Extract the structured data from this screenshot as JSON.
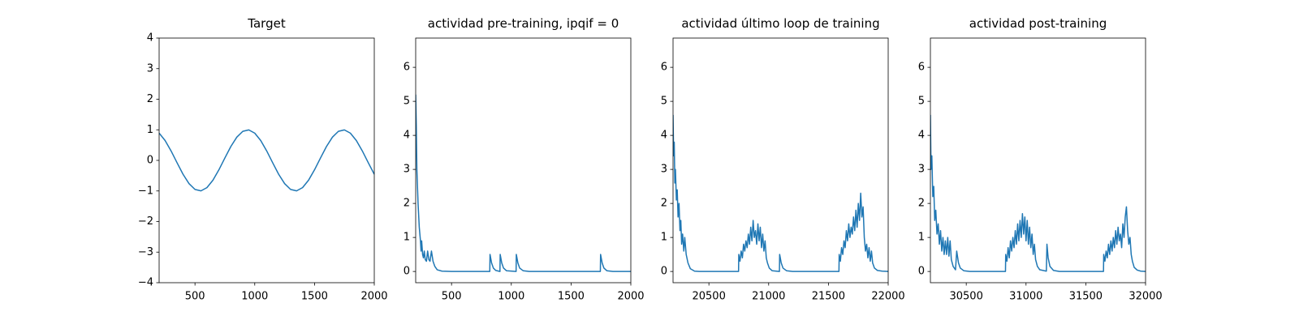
{
  "chart_data": [
    {
      "type": "line",
      "title": "Target",
      "x": [
        200,
        250,
        300,
        350,
        400,
        450,
        500,
        550,
        600,
        650,
        700,
        750,
        800,
        850,
        900,
        950,
        1000,
        1050,
        1100,
        1150,
        1200,
        1250,
        1300,
        1350,
        1400,
        1450,
        1500,
        1550,
        1600,
        1650,
        1700,
        1750,
        1800,
        1850,
        1900,
        1950,
        2000
      ],
      "series": [
        {
          "color": "#1f77b4",
          "values": [
            0.891,
            0.649,
            0.309,
            -0.078,
            -0.454,
            -0.76,
            -0.951,
            -0.997,
            -0.891,
            -0.649,
            -0.309,
            0.078,
            0.454,
            0.76,
            0.951,
            0.997,
            0.891,
            0.649,
            0.309,
            -0.078,
            -0.454,
            -0.76,
            -0.951,
            -0.997,
            -0.891,
            -0.649,
            -0.309,
            0.078,
            0.454,
            0.76,
            0.951,
            0.997,
            0.891,
            0.649,
            0.309,
            -0.078,
            -0.454
          ]
        }
      ],
      "xlim": [
        200,
        2000
      ],
      "xticks": [
        500,
        1000,
        1500,
        2000
      ],
      "ylim": [
        -4,
        4
      ],
      "yticks": [
        {
          "value": -4,
          "label": "−4"
        },
        {
          "value": -3,
          "label": "−3"
        },
        {
          "value": -2,
          "label": "−2"
        },
        {
          "value": -1,
          "label": "−1"
        },
        0,
        1,
        2,
        3,
        4
      ]
    },
    {
      "type": "line",
      "title": "actividad pre-training, ipqif = 0",
      "x": [
        200,
        205,
        210,
        220,
        230,
        240,
        245,
        250,
        258,
        265,
        272,
        280,
        290,
        300,
        310,
        320,
        332,
        345,
        360,
        380,
        420,
        500,
        820,
        822,
        835,
        850,
        870,
        905,
        907,
        920,
        935,
        960,
        1040,
        1042,
        1055,
        1070,
        1100,
        1150,
        1745,
        1747,
        1760,
        1775,
        1800,
        1850,
        2000
      ],
      "series": [
        {
          "color": "#1f77b4",
          "values": [
            5.2,
            4.3,
            3.0,
            2.0,
            1.3,
            0.9,
            0.6,
            0.9,
            0.5,
            0.4,
            0.6,
            0.35,
            0.3,
            0.6,
            0.35,
            0.3,
            0.6,
            0.3,
            0.15,
            0.05,
            0.01,
            0,
            0,
            0.5,
            0.25,
            0.1,
            0.03,
            0,
            0.5,
            0.25,
            0.1,
            0.02,
            0,
            0.5,
            0.25,
            0.1,
            0.02,
            0,
            0,
            0.5,
            0.25,
            0.1,
            0.02,
            0,
            0
          ]
        }
      ],
      "xlim": [
        200,
        2000
      ],
      "xticks": [
        500,
        1000,
        1500,
        2000
      ],
      "ylim": [
        -0.33,
        6.86
      ],
      "yticks": [
        0,
        1,
        2,
        3,
        4,
        5,
        6
      ]
    },
    {
      "type": "line",
      "title": "actividad último loop de training",
      "x": [
        20200,
        20205,
        20210,
        20215,
        20220,
        20228,
        20235,
        20242,
        20250,
        20258,
        20265,
        20272,
        20280,
        20290,
        20298,
        20310,
        20325,
        20345,
        20380,
        20420,
        20748,
        20750,
        20760,
        20770,
        20780,
        20790,
        20800,
        20810,
        20820,
        20830,
        20840,
        20850,
        20860,
        20870,
        20880,
        20890,
        20900,
        20910,
        20920,
        20930,
        20940,
        20950,
        20960,
        20970,
        20980,
        20990,
        21005,
        21030,
        21090,
        21092,
        21105,
        21120,
        21150,
        21200,
        21588,
        21590,
        21600,
        21610,
        21620,
        21630,
        21640,
        21650,
        21660,
        21670,
        21680,
        21690,
        21700,
        21710,
        21720,
        21730,
        21740,
        21750,
        21760,
        21770,
        21780,
        21790,
        21800,
        21810,
        21820,
        21830,
        21840,
        21850,
        21860,
        21870,
        21885,
        21910,
        21950,
        22000
      ],
      "series": [
        {
          "color": "#1f77b4",
          "values": [
            4.6,
            3.4,
            3.8,
            2.6,
            3.0,
            2.1,
            2.4,
            1.6,
            2.0,
            1.2,
            1.5,
            0.8,
            1.1,
            0.6,
            1.0,
            0.5,
            0.25,
            0.08,
            0.01,
            0,
            0,
            0.5,
            0.3,
            0.6,
            0.4,
            0.8,
            0.6,
            0.9,
            0.7,
            1.1,
            0.8,
            1.3,
            0.9,
            1.5,
            1.0,
            1.2,
            0.8,
            1.4,
            0.9,
            1.3,
            0.7,
            1.1,
            0.6,
            0.9,
            0.4,
            0.25,
            0.1,
            0.02,
            0,
            0.5,
            0.25,
            0.1,
            0.02,
            0,
            0,
            0.5,
            0.3,
            0.7,
            0.5,
            0.9,
            0.7,
            1.2,
            0.9,
            1.4,
            1.0,
            1.3,
            1.1,
            1.6,
            1.2,
            1.8,
            1.3,
            2.0,
            1.5,
            2.3,
            1.6,
            1.9,
            1.0,
            0.6,
            0.8,
            0.4,
            0.7,
            0.3,
            0.6,
            0.25,
            0.1,
            0.03,
            0.01,
            0
          ]
        }
      ],
      "xlim": [
        20200,
        22000
      ],
      "xticks": [
        20500,
        21000,
        21500,
        22000
      ],
      "ylim": [
        -0.33,
        6.86
      ],
      "yticks": [
        0,
        1,
        2,
        3,
        4,
        5,
        6
      ]
    },
    {
      "type": "line",
      "title": "actividad post-training",
      "x": [
        30200,
        30205,
        30212,
        30220,
        30228,
        30236,
        30245,
        30255,
        30265,
        30275,
        30285,
        30295,
        30305,
        30315,
        30325,
        30335,
        30345,
        30355,
        30365,
        30375,
        30390,
        30410,
        30420,
        30435,
        30450,
        30480,
        30530,
        30828,
        30830,
        30840,
        30850,
        30860,
        30870,
        30880,
        30890,
        30900,
        30910,
        30920,
        30930,
        30940,
        30950,
        30960,
        30970,
        30980,
        30990,
        31000,
        31010,
        31020,
        31030,
        31040,
        31050,
        31060,
        31070,
        31080,
        31095,
        31115,
        31170,
        31175,
        31185,
        31200,
        31230,
        31280,
        31648,
        31650,
        31660,
        31670,
        31680,
        31690,
        31700,
        31710,
        31720,
        31730,
        31740,
        31750,
        31760,
        31770,
        31780,
        31790,
        31800,
        31810,
        31820,
        31830,
        31840,
        31850,
        31860,
        31870,
        31880,
        31890,
        31905,
        31930,
        31960,
        32000
      ],
      "series": [
        {
          "color": "#1f77b4",
          "values": [
            4.6,
            3.0,
            3.4,
            2.2,
            2.5,
            1.5,
            1.8,
            1.1,
            1.4,
            0.8,
            1.2,
            0.6,
            1.0,
            0.5,
            0.9,
            0.5,
            1.0,
            0.45,
            0.9,
            0.35,
            0.15,
            0.05,
            0.6,
            0.25,
            0.1,
            0.02,
            0,
            0,
            0.5,
            0.3,
            0.7,
            0.4,
            0.9,
            0.6,
            1.0,
            0.7,
            1.2,
            0.8,
            1.4,
            0.9,
            1.5,
            1.0,
            1.7,
            1.1,
            1.6,
            0.9,
            1.5,
            0.8,
            1.3,
            0.7,
            1.1,
            0.5,
            0.8,
            0.35,
            0.15,
            0.05,
            0.01,
            0.8,
            0.4,
            0.15,
            0.03,
            0,
            0,
            0.5,
            0.3,
            0.6,
            0.4,
            0.8,
            0.5,
            0.9,
            0.6,
            1.0,
            0.7,
            1.2,
            0.8,
            1.3,
            0.9,
            1.1,
            0.7,
            1.4,
            1.0,
            1.6,
            1.9,
            1.2,
            0.8,
            1.0,
            0.5,
            0.3,
            0.12,
            0.04,
            0.01,
            0
          ]
        }
      ],
      "xlim": [
        30200,
        32000
      ],
      "xticks": [
        30500,
        31000,
        31500,
        32000
      ],
      "ylim": [
        -0.33,
        6.86
      ],
      "yticks": [
        0,
        1,
        2,
        3,
        4,
        5,
        6
      ]
    }
  ]
}
